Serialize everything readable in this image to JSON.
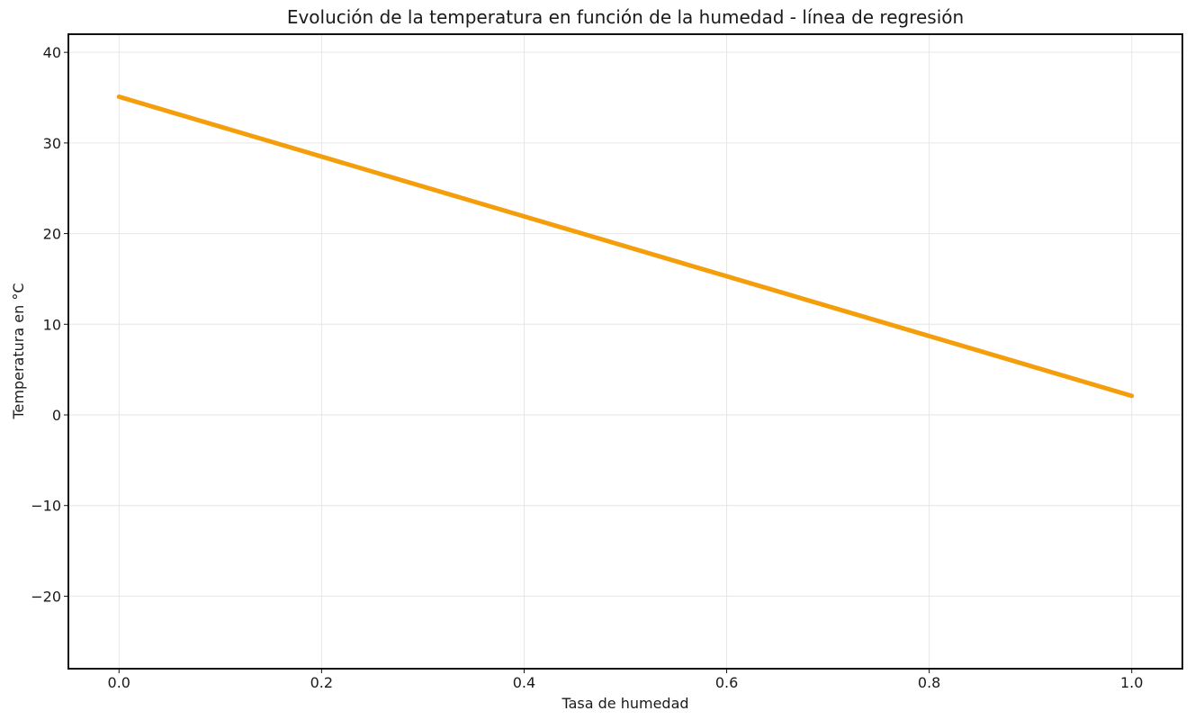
{
  "chart_data": {
    "type": "line",
    "title": "Evolución de la temperatura en función de la humedad - línea de regresión",
    "xlabel": "Tasa de humedad",
    "ylabel": "Temperatura en °C",
    "xlim": [
      -0.05,
      1.05
    ],
    "ylim": [
      -28,
      42
    ],
    "x_ticks": [
      0.0,
      0.2,
      0.4,
      0.6,
      0.8,
      1.0
    ],
    "x_tick_labels": [
      "0.0",
      "0.2",
      "0.4",
      "0.6",
      "0.8",
      "1.0"
    ],
    "y_ticks": [
      -20,
      -10,
      0,
      10,
      20,
      30,
      40
    ],
    "y_tick_labels": [
      "−20",
      "−10",
      "0",
      "10",
      "20",
      "30",
      "40"
    ],
    "grid": true,
    "series": [
      {
        "color": "#f59e0b",
        "x": [
          0.0,
          1.0
        ],
        "y": [
          35.1,
          2.1
        ]
      }
    ]
  }
}
